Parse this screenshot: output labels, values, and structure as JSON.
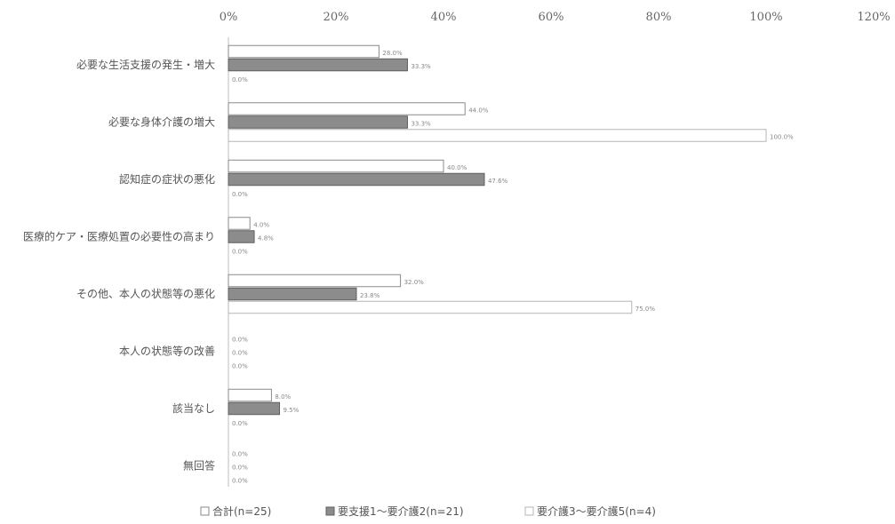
{
  "chart_data": {
    "type": "bar",
    "orientation": "horizontal",
    "xlim": [
      0,
      120
    ],
    "x_ticks": [
      "0%",
      "20%",
      "40%",
      "60%",
      "80%",
      "100%",
      "120%"
    ],
    "grid": false,
    "legend_position": "bottom",
    "categories": [
      "必要な生活支援の発生・増大",
      "必要な身体介護の増大",
      "認知症の症状の悪化",
      "医療的ケア・医療処置の必要性の高まり",
      "その他、本人の状態等の悪化",
      "本人の状態等の改善",
      "該当なし",
      "無回答"
    ],
    "series": [
      {
        "name": "合計(n=25)",
        "color": "#ffffff",
        "values": [
          28.0,
          44.0,
          40.0,
          4.0,
          32.0,
          0.0,
          8.0,
          0.0
        ],
        "labels": [
          "28.0%",
          "44.0%",
          "40.0%",
          "4.0%",
          "32.0%",
          "0.0%",
          "8.0%",
          "0.0%"
        ]
      },
      {
        "name": "要支援1～要介護2(n=21)",
        "color": "#8c8c8c",
        "values": [
          33.3,
          33.3,
          47.6,
          4.8,
          23.8,
          0.0,
          9.5,
          0.0
        ],
        "labels": [
          "33.3%",
          "33.3%",
          "47.6%",
          "4.8%",
          "23.8%",
          "0.0%",
          "9.5%",
          "0.0%"
        ]
      },
      {
        "name": "要介護3～要介護5(n=4)",
        "color": "#ffffff",
        "values": [
          0.0,
          100.0,
          0.0,
          0.0,
          75.0,
          0.0,
          0.0,
          0.0
        ],
        "labels": [
          "0.0%",
          "100.0%",
          "0.0%",
          "0.0%",
          "75.0%",
          "0.0%",
          "0.0%",
          "0.0%"
        ]
      }
    ],
    "legend": [
      "合計(n=25)",
      "要支援1～要介護2(n=21)",
      "要介護3～要介護5(n=4)"
    ]
  }
}
